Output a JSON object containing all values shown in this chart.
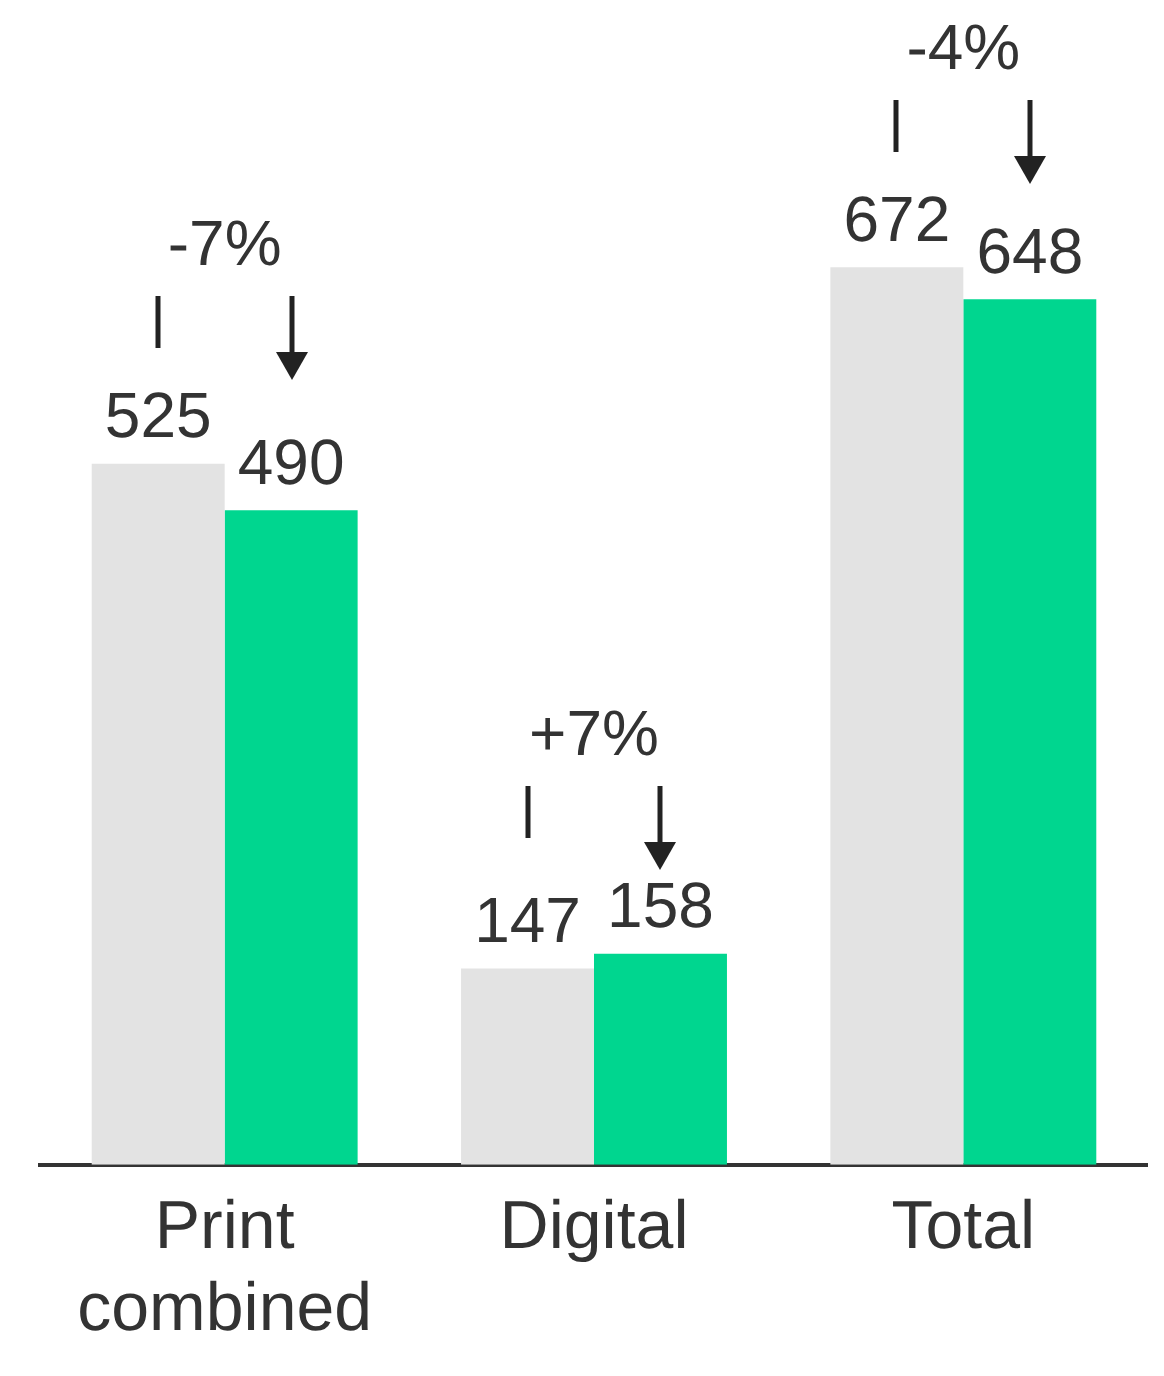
{
  "chart_data": {
    "type": "bar",
    "categories": [
      "Print combined",
      "Digital",
      "Total"
    ],
    "series": [
      {
        "color": "#e3e3e3",
        "values": [
          525,
          147,
          672
        ]
      },
      {
        "color": "#00d68f",
        "values": [
          490,
          158,
          648
        ]
      }
    ],
    "data_labels": true,
    "grid": false,
    "legend": false,
    "annotations": [
      "-7%",
      "+7%",
      "-4%"
    ]
  }
}
